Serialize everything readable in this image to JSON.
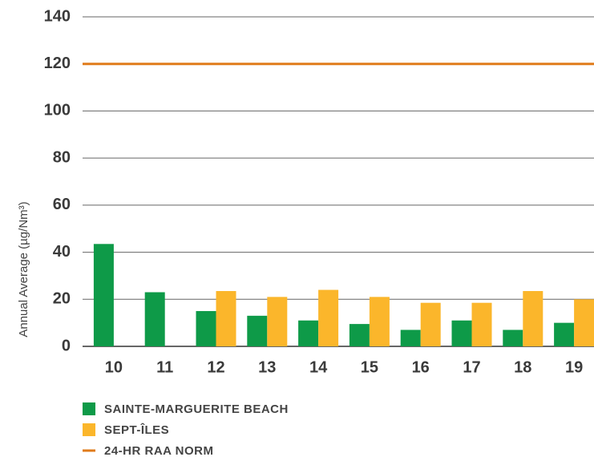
{
  "chart_data": {
    "type": "bar",
    "y_label": "Annual Average (µg/Nm³)",
    "categories": [
      "10",
      "11",
      "12",
      "13",
      "14",
      "15",
      "16",
      "17",
      "18",
      "19"
    ],
    "series": [
      {
        "name": "SAINTE-MARGUERITE BEACH",
        "color": "#0e9a48",
        "values": [
          43.5,
          23,
          15,
          13,
          11,
          9.5,
          7,
          11,
          7,
          10
        ]
      },
      {
        "name": "SEPT-ÎLES",
        "color": "#fbb62b",
        "values": [
          null,
          null,
          23.5,
          21,
          24,
          21,
          18.5,
          18.5,
          23.5,
          20
        ]
      }
    ],
    "norm": {
      "name": "24-HR RAA NORM",
      "value": 120,
      "color": "#e07b1a"
    },
    "ylim": [
      0,
      140
    ],
    "yticks": [
      0,
      20,
      40,
      60,
      80,
      100,
      120,
      140
    ],
    "grid": true
  }
}
